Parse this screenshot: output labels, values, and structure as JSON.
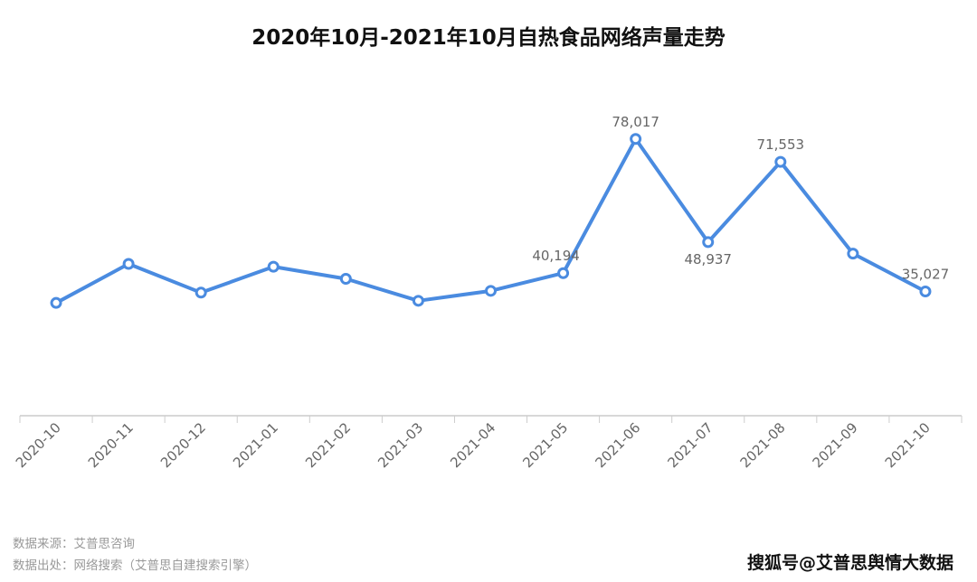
{
  "chart_data": {
    "type": "line",
    "title": "2020年10月-2021年10月自热食品网络声量走势",
    "categories": [
      "2020-10",
      "2020-11",
      "2020-12",
      "2021-01",
      "2021-02",
      "2021-03",
      "2021-04",
      "2021-05",
      "2021-06",
      "2021-07",
      "2021-08",
      "2021-09",
      "2021-10"
    ],
    "series": [
      {
        "values": [
          31800,
          42800,
          34700,
          42000,
          38600,
          32400,
          35200,
          40194,
          78017,
          48937,
          71553,
          45700,
          35027
        ],
        "labels": [
          null,
          null,
          null,
          null,
          null,
          null,
          null,
          "40,194",
          "78,017",
          "48,937",
          "71,553",
          null,
          "35,027"
        ]
      }
    ],
    "ylim": [
      0,
      80000
    ],
    "grid": false,
    "color": "#4a8be0"
  },
  "footer": {
    "source": "数据来源：艾普思咨询",
    "origin": "数据出处：网络搜索（艾普思自建搜索引擎）",
    "credit": "搜狐号@艾普思舆情大数据"
  }
}
